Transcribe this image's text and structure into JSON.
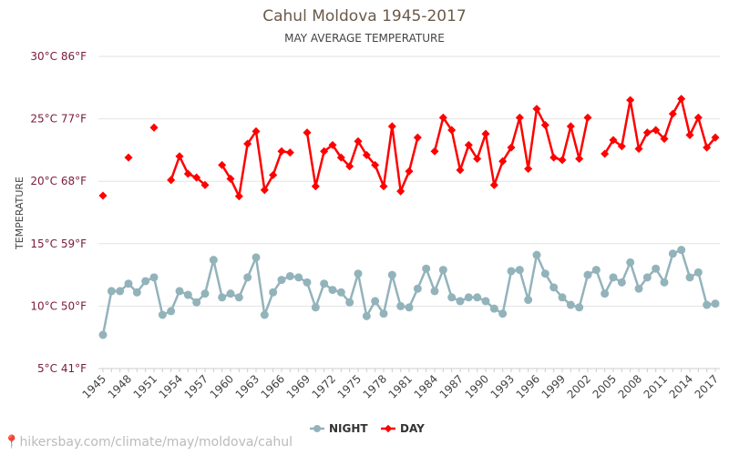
{
  "chart_data": {
    "type": "line",
    "title": "Cahul Moldova 1945-2017",
    "subtitle": "MAY AVERAGE TEMPERATURE",
    "ylabel": "TEMPERATURE",
    "xlabel": "",
    "ylim": [
      5,
      30
    ],
    "y_ticks": [
      "5°C 41°F",
      "10°C 50°F",
      "15°C 59°F",
      "20°C 68°F",
      "25°C 77°F",
      "30°C 86°F"
    ],
    "y_tick_values": [
      5,
      10,
      15,
      20,
      25,
      30
    ],
    "x_start": 1945,
    "x_end": 2017,
    "x_ticks": [
      "1945",
      "1948",
      "1951",
      "1954",
      "1957",
      "1960",
      "1963",
      "1966",
      "1969",
      "1972",
      "1975",
      "1978",
      "1981",
      "1984",
      "1987",
      "1990",
      "1993",
      "1996",
      "1999",
      "2002",
      "2005",
      "2008",
      "2011",
      "2014",
      "2017"
    ],
    "legend_position": "bottom",
    "grid": true,
    "series": [
      {
        "name": "NIGHT",
        "color": "#93b3bb",
        "values": [
          7.7,
          11.2,
          11.2,
          11.8,
          11.1,
          12.0,
          12.3,
          9.3,
          9.6,
          11.2,
          10.9,
          10.3,
          11.0,
          13.7,
          10.7,
          11.0,
          10.7,
          12.3,
          13.9,
          9.3,
          11.1,
          12.1,
          12.4,
          12.3,
          11.9,
          9.9,
          11.8,
          11.3,
          11.1,
          10.3,
          12.6,
          9.2,
          10.4,
          9.4,
          12.5,
          10.0,
          9.9,
          11.4,
          13.0,
          11.2,
          12.9,
          10.7,
          10.4,
          10.7,
          10.7,
          10.4,
          9.8,
          9.4,
          12.8,
          12.9,
          10.5,
          14.1,
          12.6,
          11.5,
          10.7,
          10.1,
          9.9,
          12.5,
          12.9,
          11.0,
          12.3,
          11.9,
          13.5,
          11.4,
          12.3,
          13.0,
          11.9,
          14.2,
          14.5,
          12.3,
          12.7,
          10.1,
          10.2
        ]
      },
      {
        "name": "DAY",
        "color": "#ff0000",
        "values": [
          18.85,
          null,
          null,
          21.9,
          null,
          null,
          24.3,
          null,
          20.1,
          22.0,
          20.6,
          20.3,
          19.7,
          null,
          21.3,
          20.2,
          18.8,
          23.0,
          24.0,
          19.3,
          20.5,
          22.4,
          22.3,
          null,
          23.9,
          19.6,
          22.4,
          22.9,
          21.9,
          21.2,
          23.2,
          22.1,
          21.3,
          19.6,
          24.4,
          19.2,
          20.8,
          23.5,
          null,
          22.4,
          25.1,
          24.1,
          20.9,
          22.9,
          21.8,
          23.8,
          19.7,
          21.6,
          22.7,
          25.1,
          21.0,
          25.8,
          24.5,
          21.9,
          21.7,
          24.4,
          21.8,
          25.1,
          null,
          22.2,
          23.3,
          22.8,
          26.5,
          22.6,
          23.9,
          24.1,
          23.4,
          25.4,
          26.6,
          23.7,
          25.1,
          22.7,
          23.5
        ]
      }
    ]
  },
  "footer": {
    "text": "hikersbay.com/climate/may/moldova/cahul"
  }
}
